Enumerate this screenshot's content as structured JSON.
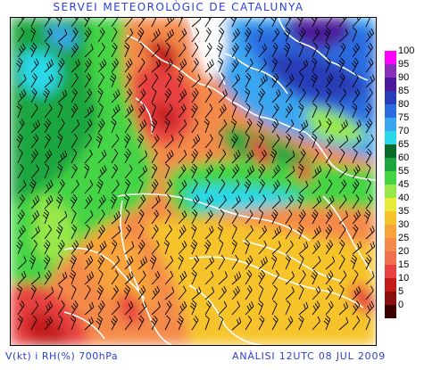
{
  "header": {
    "title": "SERVEI METEOROLÒGIC DE CATALUNYA"
  },
  "footer": {
    "left": "V(kt) i RH(%) 700hPa",
    "right": "ANÀLISI 12UTC 08 JUL 2009"
  },
  "legend": {
    "items": [
      {
        "label": "100",
        "color": "#ff00ff"
      },
      {
        "label": "95",
        "color": "#8a2fb8"
      },
      {
        "label": "90",
        "color": "#4b1a9a"
      },
      {
        "label": "85",
        "color": "#2a3db8"
      },
      {
        "label": "80",
        "color": "#2a6ce0"
      },
      {
        "label": "75",
        "color": "#3aa6f0"
      },
      {
        "label": "70",
        "color": "#2ad8e8"
      },
      {
        "label": "65",
        "color": "#0a6a2a"
      },
      {
        "label": "60",
        "color": "#1ca640"
      },
      {
        "label": "55",
        "color": "#44d444"
      },
      {
        "label": "45",
        "color": "#98e848"
      },
      {
        "label": "40",
        "color": "#e8ec38"
      },
      {
        "label": "35",
        "color": "#f6c42a"
      },
      {
        "label": "30",
        "color": "#f8a43a"
      },
      {
        "label": "25",
        "color": "#f48a4a"
      },
      {
        "label": "20",
        "color": "#f2704e"
      },
      {
        "label": "15",
        "color": "#e84040"
      },
      {
        "label": "10",
        "color": "#c41a1a"
      },
      {
        "label": "5",
        "color": "#8a1010"
      },
      {
        "label": "0",
        "color": "#3a0000"
      }
    ]
  }
}
